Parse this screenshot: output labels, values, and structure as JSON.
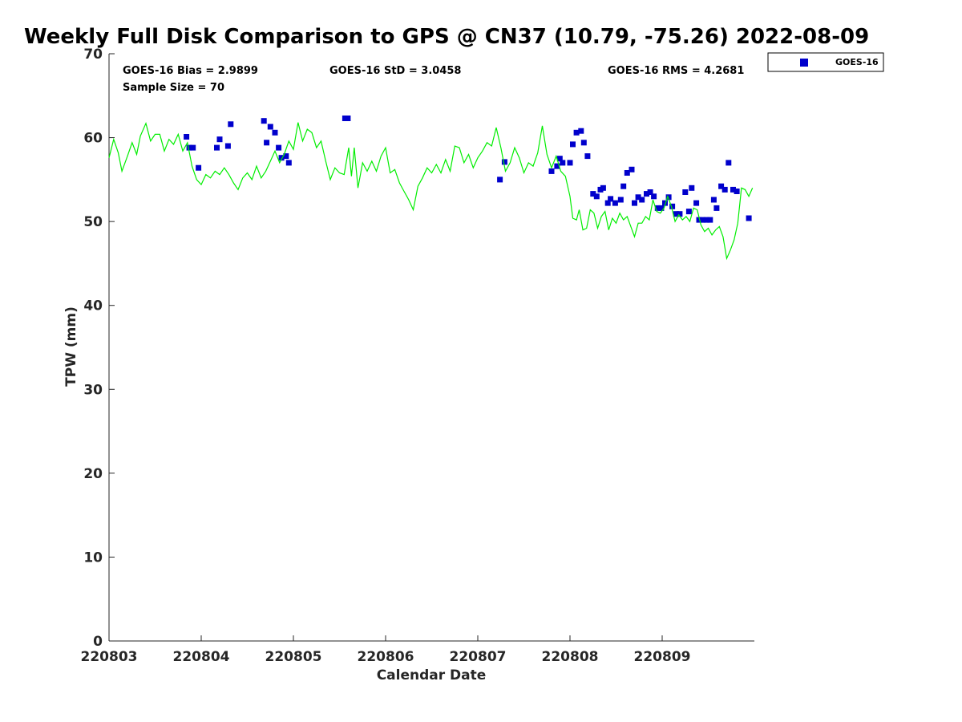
{
  "chart_data": {
    "type": "scatter",
    "title": "Weekly Full Disk Comparison to GPS @ CN37 (10.79, -75.26) 2022-08-09",
    "xlabel": "Calendar Date",
    "ylabel": "TPW (mm)",
    "xlim": [
      0,
      7
    ],
    "ylim": [
      0,
      70
    ],
    "x_tick_labels": [
      "220803",
      "220804",
      "220805",
      "220806",
      "220807",
      "220808",
      "220809"
    ],
    "y_ticks": [
      0,
      10,
      20,
      30,
      40,
      50,
      60,
      70
    ],
    "grid": false,
    "legend_position": "top-right (outside plot)",
    "stats": {
      "bias": "GOES-16 Bias = 2.9899",
      "std": "GOES-16 StD = 3.0458",
      "rms": "GOES-16 RMS = 4.2681",
      "sample": "Sample Size = 70"
    },
    "legend": [
      {
        "name": "GOES-16",
        "color": "#0000cc",
        "marker": "square"
      }
    ],
    "series": [
      {
        "name": "GOES-16",
        "color": "#0000cc",
        "marker": "square",
        "points": [
          [
            0.84,
            60.1
          ],
          [
            0.87,
            58.8
          ],
          [
            0.91,
            58.8
          ],
          [
            0.97,
            56.4
          ],
          [
            1.17,
            58.8
          ],
          [
            1.2,
            59.8
          ],
          [
            1.29,
            59.0
          ],
          [
            1.32,
            61.6
          ],
          [
            1.68,
            62.0
          ],
          [
            1.71,
            59.4
          ],
          [
            1.75,
            61.3
          ],
          [
            1.8,
            60.6
          ],
          [
            1.84,
            58.8
          ],
          [
            1.87,
            57.6
          ],
          [
            1.92,
            57.8
          ],
          [
            1.95,
            57.0
          ],
          [
            2.56,
            62.3
          ],
          [
            2.59,
            62.3
          ],
          [
            4.24,
            55.0
          ],
          [
            4.29,
            57.1
          ],
          [
            4.8,
            56.0
          ],
          [
            4.86,
            56.6
          ],
          [
            4.89,
            57.5
          ],
          [
            4.92,
            57.0
          ],
          [
            5.0,
            57.0
          ],
          [
            5.03,
            59.2
          ],
          [
            5.07,
            60.6
          ],
          [
            5.12,
            60.8
          ],
          [
            5.15,
            59.4
          ],
          [
            5.19,
            57.8
          ],
          [
            5.25,
            53.3
          ],
          [
            5.29,
            53.0
          ],
          [
            5.33,
            53.8
          ],
          [
            5.36,
            54.0
          ],
          [
            5.41,
            52.2
          ],
          [
            5.44,
            52.7
          ],
          [
            5.49,
            52.2
          ],
          [
            5.55,
            52.6
          ],
          [
            5.58,
            54.2
          ],
          [
            5.62,
            55.8
          ],
          [
            5.67,
            56.2
          ],
          [
            5.7,
            52.2
          ],
          [
            5.74,
            52.9
          ],
          [
            5.78,
            52.6
          ],
          [
            5.83,
            53.3
          ],
          [
            5.87,
            53.5
          ],
          [
            5.91,
            53.0
          ],
          [
            5.95,
            51.6
          ],
          [
            5.99,
            51.6
          ],
          [
            6.03,
            52.2
          ],
          [
            6.07,
            52.9
          ],
          [
            6.11,
            51.8
          ],
          [
            6.15,
            50.9
          ],
          [
            6.19,
            50.9
          ],
          [
            6.25,
            53.5
          ],
          [
            6.29,
            51.2
          ],
          [
            6.32,
            54.0
          ],
          [
            6.37,
            52.2
          ],
          [
            6.4,
            50.2
          ],
          [
            6.44,
            50.2
          ],
          [
            6.48,
            50.2
          ],
          [
            6.52,
            50.2
          ],
          [
            6.56,
            52.6
          ],
          [
            6.59,
            51.6
          ],
          [
            6.64,
            54.2
          ],
          [
            6.68,
            53.8
          ],
          [
            6.72,
            57.0
          ],
          [
            6.77,
            53.8
          ],
          [
            6.81,
            53.6
          ],
          [
            6.94,
            50.4
          ]
        ]
      },
      {
        "name": "",
        "color": "#00ee00",
        "type": "line",
        "points": [
          [
            0.0,
            57.6
          ],
          [
            0.05,
            59.8
          ],
          [
            0.1,
            58.2
          ],
          [
            0.14,
            56.0
          ],
          [
            0.2,
            57.8
          ],
          [
            0.25,
            59.4
          ],
          [
            0.3,
            58.0
          ],
          [
            0.34,
            60.2
          ],
          [
            0.4,
            61.7
          ],
          [
            0.45,
            59.6
          ],
          [
            0.5,
            60.4
          ],
          [
            0.55,
            60.4
          ],
          [
            0.6,
            58.4
          ],
          [
            0.65,
            59.8
          ],
          [
            0.7,
            59.2
          ],
          [
            0.75,
            60.4
          ],
          [
            0.8,
            58.4
          ],
          [
            0.85,
            59.4
          ],
          [
            0.9,
            56.6
          ],
          [
            0.95,
            55.0
          ],
          [
            1.0,
            54.4
          ],
          [
            1.05,
            55.6
          ],
          [
            1.1,
            55.2
          ],
          [
            1.15,
            56.0
          ],
          [
            1.2,
            55.6
          ],
          [
            1.25,
            56.4
          ],
          [
            1.3,
            55.6
          ],
          [
            1.35,
            54.6
          ],
          [
            1.4,
            53.8
          ],
          [
            1.45,
            55.2
          ],
          [
            1.5,
            55.8
          ],
          [
            1.55,
            55.0
          ],
          [
            1.6,
            56.6
          ],
          [
            1.65,
            55.2
          ],
          [
            1.7,
            56.0
          ],
          [
            1.75,
            57.2
          ],
          [
            1.8,
            58.4
          ],
          [
            1.85,
            57.0
          ],
          [
            1.9,
            58.0
          ],
          [
            1.95,
            59.6
          ],
          [
            2.0,
            58.6
          ],
          [
            2.05,
            61.8
          ],
          [
            2.1,
            59.6
          ],
          [
            2.15,
            61.0
          ],
          [
            2.2,
            60.6
          ],
          [
            2.25,
            58.8
          ],
          [
            2.3,
            59.6
          ],
          [
            2.35,
            57.2
          ],
          [
            2.4,
            55.0
          ],
          [
            2.45,
            56.4
          ],
          [
            2.5,
            55.8
          ],
          [
            2.55,
            55.6
          ],
          [
            2.6,
            58.8
          ],
          [
            2.63,
            55.4
          ],
          [
            2.66,
            58.8
          ],
          [
            2.7,
            54.0
          ],
          [
            2.75,
            57.0
          ],
          [
            2.8,
            56.0
          ],
          [
            2.85,
            57.2
          ],
          [
            2.9,
            56.0
          ],
          [
            2.95,
            57.8
          ],
          [
            3.0,
            58.8
          ],
          [
            3.05,
            55.8
          ],
          [
            3.1,
            56.2
          ],
          [
            3.15,
            54.6
          ],
          [
            3.2,
            53.6
          ],
          [
            3.25,
            52.6
          ],
          [
            3.3,
            51.4
          ],
          [
            3.35,
            54.2
          ],
          [
            3.4,
            55.2
          ],
          [
            3.45,
            56.4
          ],
          [
            3.5,
            55.8
          ],
          [
            3.55,
            56.8
          ],
          [
            3.6,
            55.8
          ],
          [
            3.65,
            57.4
          ],
          [
            3.7,
            56.0
          ],
          [
            3.75,
            59.0
          ],
          [
            3.8,
            58.8
          ],
          [
            3.85,
            57.0
          ],
          [
            3.9,
            58.0
          ],
          [
            3.95,
            56.4
          ],
          [
            4.0,
            57.6
          ],
          [
            4.05,
            58.4
          ],
          [
            4.1,
            59.4
          ],
          [
            4.15,
            59.0
          ],
          [
            4.2,
            61.2
          ],
          [
            4.25,
            58.8
          ],
          [
            4.3,
            56.0
          ],
          [
            4.35,
            57.0
          ],
          [
            4.4,
            58.8
          ],
          [
            4.45,
            57.6
          ],
          [
            4.5,
            55.8
          ],
          [
            4.55,
            57.0
          ],
          [
            4.6,
            56.6
          ],
          [
            4.65,
            58.2
          ],
          [
            4.7,
            61.4
          ],
          [
            4.75,
            58.0
          ],
          [
            4.8,
            56.4
          ],
          [
            4.85,
            57.8
          ],
          [
            4.9,
            56.0
          ],
          [
            4.95,
            55.4
          ],
          [
            5.0,
            53.0
          ],
          [
            5.03,
            50.4
          ],
          [
            5.07,
            50.2
          ],
          [
            5.1,
            51.4
          ],
          [
            5.14,
            49.0
          ],
          [
            5.18,
            49.2
          ],
          [
            5.22,
            51.4
          ],
          [
            5.26,
            51.0
          ],
          [
            5.3,
            49.2
          ],
          [
            5.34,
            50.6
          ],
          [
            5.38,
            51.2
          ],
          [
            5.42,
            49.0
          ],
          [
            5.46,
            50.4
          ],
          [
            5.5,
            49.8
          ],
          [
            5.54,
            51.0
          ],
          [
            5.58,
            50.2
          ],
          [
            5.62,
            50.6
          ],
          [
            5.66,
            49.4
          ],
          [
            5.7,
            48.2
          ],
          [
            5.74,
            49.8
          ],
          [
            5.78,
            49.8
          ],
          [
            5.82,
            50.6
          ],
          [
            5.86,
            50.2
          ],
          [
            5.9,
            52.6
          ],
          [
            5.94,
            51.2
          ],
          [
            5.98,
            51.0
          ],
          [
            6.02,
            51.6
          ],
          [
            6.06,
            53.0
          ],
          [
            6.1,
            51.8
          ],
          [
            6.14,
            50.0
          ],
          [
            6.18,
            50.8
          ],
          [
            6.22,
            50.2
          ],
          [
            6.26,
            50.6
          ],
          [
            6.3,
            50.0
          ],
          [
            6.34,
            51.6
          ],
          [
            6.38,
            51.4
          ],
          [
            6.42,
            49.6
          ],
          [
            6.46,
            48.8
          ],
          [
            6.5,
            49.2
          ],
          [
            6.54,
            48.4
          ],
          [
            6.58,
            49.0
          ],
          [
            6.62,
            49.4
          ],
          [
            6.66,
            48.2
          ],
          [
            6.7,
            45.6
          ],
          [
            6.74,
            46.6
          ],
          [
            6.78,
            47.8
          ],
          [
            6.82,
            49.8
          ],
          [
            6.86,
            54.0
          ],
          [
            6.9,
            53.8
          ],
          [
            6.94,
            53.0
          ],
          [
            6.98,
            54.0
          ]
        ]
      }
    ]
  }
}
